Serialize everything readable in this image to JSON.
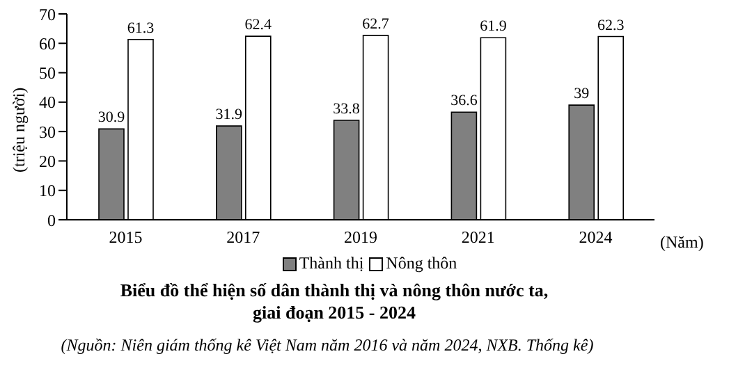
{
  "chart_data": {
    "type": "bar",
    "title": "Biểu đồ thể hiện số dân thành thị và nông thôn nước ta,\ngiai đoạn 2015 - 2024",
    "xlabel": "(Năm)",
    "ylabel": "(triệu người)",
    "annotations": [
      "(Nguồn: Niên giám thống kê Việt Nam năm 2016 và năm 2024, NXB. Thống kê)"
    ],
    "categories": [
      "2015",
      "2017",
      "2019",
      "2021",
      "2024"
    ],
    "series": [
      {
        "name": "Thành thị",
        "color": "#808080",
        "values": [
          30.9,
          31.9,
          33.8,
          36.6,
          39
        ]
      },
      {
        "name": "Nông thôn",
        "color": "#ffffff",
        "values": [
          61.3,
          62.4,
          62.7,
          61.9,
          62.3
        ]
      }
    ],
    "ylim": [
      0,
      70
    ],
    "yticks": [
      0,
      10,
      20,
      30,
      40,
      50,
      60,
      70
    ],
    "grid": false,
    "legend": "bottom",
    "data_labels": true
  }
}
